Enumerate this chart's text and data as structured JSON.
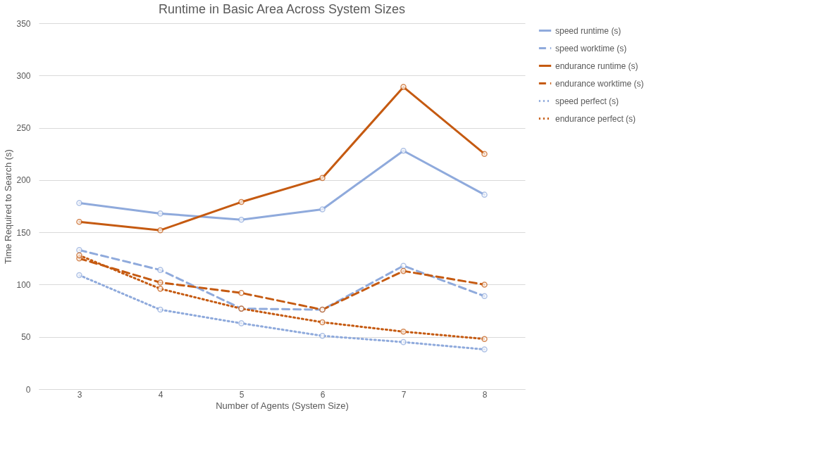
{
  "chart_data": {
    "type": "line",
    "title": "Runtime in Basic Area Across System Sizes",
    "xlabel": "Number of Agents (System Size)",
    "ylabel": "Time Required to Search (s)",
    "categories": [
      "3",
      "4",
      "5",
      "6",
      "7",
      "8"
    ],
    "series": [
      {
        "name": "speed runtime (s)",
        "color": "#8faadc",
        "line_style": "solid",
        "values": [
          178,
          168,
          162,
          172,
          228,
          186
        ]
      },
      {
        "name": "speed worktime (s)",
        "color": "#8faadc",
        "line_style": "dashed",
        "values": [
          133,
          114,
          77,
          76,
          118,
          89
        ]
      },
      {
        "name": "endurance runtime (s)",
        "color": "#c55a11",
        "line_style": "solid",
        "values": [
          160,
          152,
          179,
          202,
          289,
          225
        ]
      },
      {
        "name": "endurance worktime (s)",
        "color": "#c55a11",
        "line_style": "dashed",
        "values": [
          125,
          102,
          92,
          76,
          113,
          100
        ]
      },
      {
        "name": "speed perfect (s)",
        "color": "#8faadc",
        "line_style": "dotted",
        "values": [
          109,
          76,
          63,
          51,
          45,
          38
        ]
      },
      {
        "name": "endurance perfect (s)",
        "color": "#c55a11",
        "line_style": "dotted",
        "values": [
          128,
          96,
          77,
          64,
          55,
          48
        ]
      }
    ],
    "ylim": [
      0,
      350
    ],
    "yticks": [
      0,
      50,
      100,
      150,
      200,
      250,
      300,
      350
    ],
    "grid": "y",
    "legend": "right",
    "marker": "circle"
  }
}
